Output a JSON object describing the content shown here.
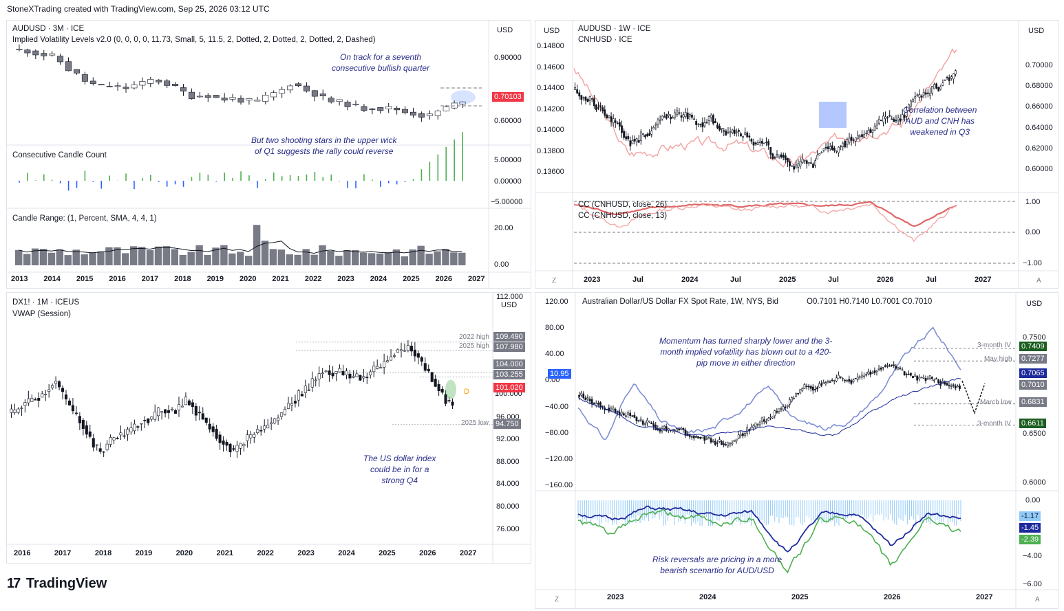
{
  "header": "StoneXTrading created with TradingView.com, Sep 25, 2026 03:12 UTC",
  "logo": "TradingView",
  "logo_mark": "17",
  "panels": {
    "tl": {
      "title": "AUDUSD · 3M · ICE",
      "indicator": "Implied Volatility Levels v2.0 (0, 0, 0, 0, 11.73, Small, 5, 11.5, 2, Dotted, 2, Dotted, 2, Dotted, 2, Dashed)",
      "currency": "USD",
      "yticks": [
        "0.90000",
        "0.60000"
      ],
      "price_tag": "0.70103",
      "ann1": [
        "On track for a seventh",
        "consecutive bullish quarter"
      ],
      "ann2": [
        "But two shooting stars in the upper wick",
        "of Q1 suggests the rally could reverse"
      ],
      "sub1_title": "Consecutive Candle Count",
      "sub1_ticks": [
        "5.00000",
        "0.00000",
        "−5.00000"
      ],
      "sub2_title": "Candle Range:  (1, Percent, SMA, 4, 4, 1)",
      "sub2_ticks": [
        "20.00",
        "0.00"
      ],
      "xticks": [
        "2013",
        "2014",
        "2015",
        "2016",
        "2017",
        "2018",
        "2019",
        "2020",
        "2021",
        "2022",
        "2023",
        "2024",
        "2025",
        "2026",
        "2027"
      ]
    },
    "tr": {
      "title": "AUDUSD · 1W · ICE",
      "title2": "CNHUSD · ICE",
      "currency_left": "USD",
      "currency_right": "USD",
      "left_ticks": [
        "0.14800",
        "0.14600",
        "0.14400",
        "0.14200",
        "0.14000",
        "0.13800",
        "0.13600"
      ],
      "right_ticks": [
        "0.70000",
        "0.68000",
        "0.66000",
        "0.64000",
        "0.62000",
        "0.60000"
      ],
      "ann": [
        "Correlation between",
        "AUD and CNH has",
        "weakened in Q3"
      ],
      "cc1": "CC (CNHUSD, close, 26)",
      "cc2": "CC (CNHUSD, close, 13)",
      "cc_ticks": [
        "1.00",
        "0.00",
        "−1.00"
      ],
      "xticks": [
        "2023",
        "Jul",
        "2024",
        "Jul",
        "2025",
        "Jul",
        "2026",
        "Jul",
        "2027"
      ],
      "z": "Z",
      "a": "A"
    },
    "bl": {
      "title": "DX1! · 1M · ICEUS",
      "indicator": "VWAP (Session)",
      "currency": "USD",
      "yticks": [
        "112.000",
        "96.000",
        "92.000",
        "88.000",
        "84.000",
        "80.000",
        "76.000"
      ],
      "tags": [
        "109.490",
        "107.980",
        "104.000",
        "103.255",
        "101.020",
        "94.750"
      ],
      "level_labels": [
        "2022 high",
        "2025 high",
        "2025 low"
      ],
      "d_label": "D",
      "partial_tick": "100.000",
      "ann": [
        "The US dollar index",
        "could be in for a",
        "strong Q4"
      ],
      "xticks": [
        "2016",
        "2017",
        "2018",
        "2019",
        "2020",
        "2021",
        "2022",
        "2023",
        "2024",
        "2025",
        "2026",
        "2027"
      ]
    },
    "br": {
      "title": "Australian Dollar/US Dollar FX Spot Rate, 1W, NYS, Bid",
      "ohlc": "O0.7101  H0.7140  L0.7001  C0.7010",
      "currency": "USD",
      "left_ticks": [
        "120.00",
        "80.00",
        "40.00",
        "0.00",
        "−40.00",
        "−80.00",
        "−120.00",
        "−160.00"
      ],
      "right_ticks": [
        "0.7500",
        "0.6500",
        "0.6000"
      ],
      "left_tag": "10.95",
      "tags": [
        "0.7409",
        "0.7277",
        "0.7065",
        "0.7010",
        "0.6831",
        "0.6611"
      ],
      "level_labels": [
        "3-month IV",
        "May high",
        "March low",
        "3-month IV"
      ],
      "ann": [
        "Momentum has turned sharply lower and the 3-",
        "month implied volatility has blown out to a 420-",
        "pip move in either direction"
      ],
      "rr_ticks": [
        "0.00",
        "−4.00",
        "−6.00"
      ],
      "rr_tags": [
        "-1.17",
        "-1.45",
        "-2.39"
      ],
      "rr_ann": [
        "Risk reversals are pricing in a more",
        "bearish scenartio for AUD/USD"
      ],
      "xticks": [
        "2023",
        "2024",
        "2025",
        "2026",
        "2027"
      ],
      "z": "Z",
      "a": "A"
    }
  },
  "colors": {
    "bull": "#4caf50",
    "bear": "#2962ff",
    "red_tag": "#f23645",
    "candle_dark": "#131722",
    "pink": "#f4a5a5",
    "corr": "#e06666",
    "navy": "#1e2a9c",
    "green_tag": "#1b5e20",
    "grey_tag": "#787b86",
    "blue_tag": "#2962ff"
  },
  "chart_data": [
    {
      "type": "line",
      "title": "AUDUSD · 3M · ICE",
      "x": [
        "2013",
        "2014",
        "2015",
        "2016",
        "2017",
        "2018",
        "2019",
        "2020",
        "2021",
        "2022",
        "2023",
        "2024",
        "2025",
        "2026"
      ],
      "series": [
        {
          "name": "AUDUSD",
          "values": [
            0.89,
            0.87,
            0.76,
            0.74,
            0.78,
            0.72,
            0.7,
            0.69,
            0.76,
            0.7,
            0.67,
            0.66,
            0.63,
            0.7
          ]
        }
      ],
      "ylim": [
        0.55,
        0.95
      ],
      "last": 0.70103
    },
    {
      "type": "line",
      "title": "AUDUSD · 1W · ICE / CNHUSD · ICE",
      "x": [
        "2023",
        "Jul",
        "2024",
        "Jul",
        "2025",
        "Jul",
        "2026",
        "Jul"
      ],
      "series": [
        {
          "name": "AUDUSD",
          "values": [
            0.69,
            0.65,
            0.67,
            0.66,
            0.63,
            0.65,
            0.67,
            0.7
          ]
        },
        {
          "name": "CNHUSD",
          "values": [
            0.146,
            0.1375,
            0.1385,
            0.1385,
            0.1365,
            0.1395,
            0.1405,
            0.1475
          ]
        }
      ]
    },
    {
      "type": "line",
      "title": "DX1! · 1M · ICEUS",
      "x": [
        "2016",
        "2017",
        "2018",
        "2019",
        "2020",
        "2021",
        "2022",
        "2023",
        "2024",
        "2025",
        "2026"
      ],
      "series": [
        {
          "name": "DX1!",
          "values": [
            97,
            102,
            90,
            96,
            99,
            90,
            96,
            104,
            103,
            109,
            98
          ]
        }
      ],
      "ylim": [
        74,
        113
      ],
      "last": 101.02
    },
    {
      "type": "line",
      "title": "Australian Dollar/US Dollar FX Spot Rate, 1W, NYS, Bid",
      "x": [
        "2023",
        "2024",
        "2025",
        "2026"
      ],
      "series": [
        {
          "name": "AUD/USD",
          "values": [
            0.69,
            0.66,
            0.64,
            0.7
          ]
        }
      ],
      "ylim": [
        0.59,
        0.76
      ],
      "last": 0.701
    }
  ]
}
